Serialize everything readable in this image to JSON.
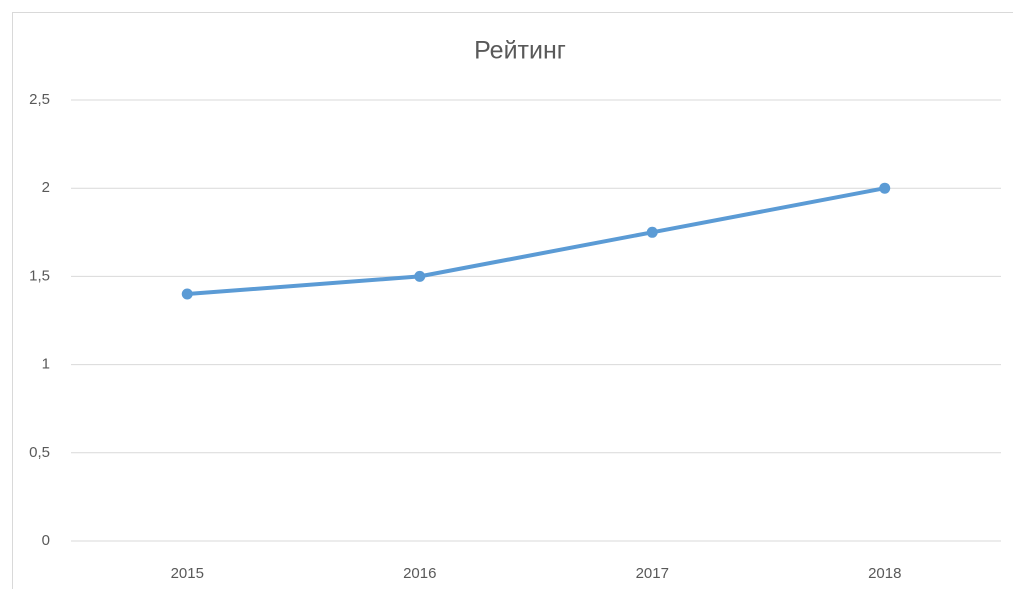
{
  "chart_data": {
    "type": "line",
    "title": "Рейтинг",
    "categories": [
      "2015",
      "2016",
      "2017",
      "2018"
    ],
    "series": [
      {
        "name": "Рейтинг",
        "color": "#5b9bd5",
        "values": [
          1.4,
          1.5,
          1.75,
          2
        ]
      }
    ],
    "ylim": [
      0,
      2.5
    ],
    "yticks": [
      0,
      {
        "value": 0.5,
        "label": "0,5"
      },
      1,
      {
        "value": 1.5,
        "label": "1,5"
      },
      2,
      {
        "value": 2.5,
        "label": "2,5"
      }
    ],
    "grid": true
  }
}
